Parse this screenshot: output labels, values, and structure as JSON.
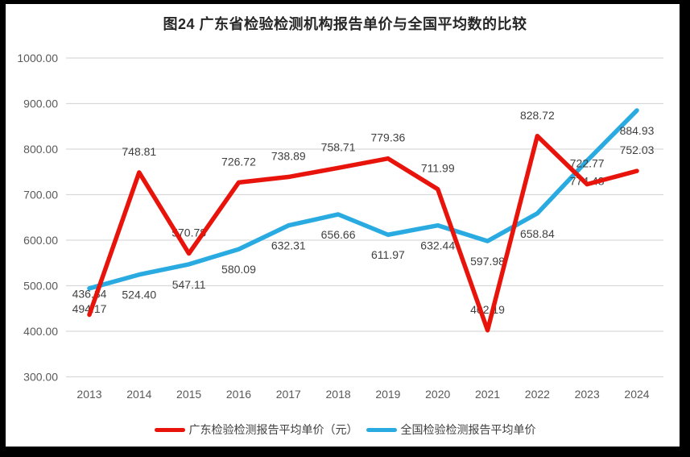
{
  "title": "图24  广东省检验检测机构报告单价与全国平均数的比较",
  "chart_data": {
    "type": "line",
    "title": "图24  广东省检验检测机构报告单价与全国平均数的比较",
    "categories": [
      "2013",
      "2014",
      "2015",
      "2016",
      "2017",
      "2018",
      "2019",
      "2020",
      "2021",
      "2022",
      "2023",
      "2024"
    ],
    "series": [
      {
        "name": "广东检验检测报告平均单价（元）",
        "color": "#E8140C",
        "label_position": "above",
        "values": [
          436.34,
          748.81,
          570.78,
          726.72,
          738.89,
          758.71,
          779.36,
          711.99,
          402.19,
          828.72,
          722.77,
          752.03
        ]
      },
      {
        "name": "全国检验检测报告平均单价",
        "color": "#29ABE2",
        "label_position": "below",
        "values": [
          494.17,
          524.4,
          547.11,
          580.09,
          632.31,
          656.66,
          611.97,
          632.44,
          597.98,
          658.84,
          774.48,
          884.93
        ]
      }
    ],
    "ylim": [
      300,
      1000
    ],
    "yticks": [
      "1000.00",
      "900.00",
      "800.00",
      "700.00",
      "600.00",
      "500.00",
      "400.00",
      "300.00"
    ],
    "grid": true,
    "legend_position": "bottom"
  },
  "colors": {
    "red_series": "#E8140C",
    "blue_series": "#29ABE2",
    "gridline": "#D9D9D9",
    "axis_text": "#595959",
    "data_label_text": "#404040",
    "title_text": "#262626",
    "frame": "#000000",
    "background": "#FFFFFF"
  }
}
